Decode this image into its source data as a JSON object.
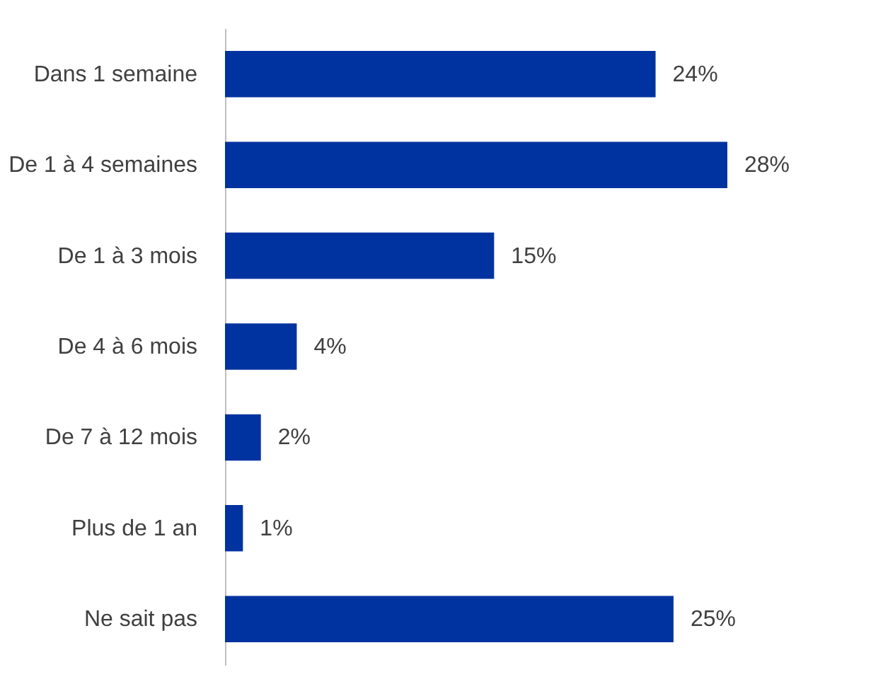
{
  "chart_data": {
    "type": "bar",
    "orientation": "horizontal",
    "categories": [
      "Dans 1 semaine",
      "De 1 à 4 semaines",
      "De 1 à 3 mois",
      "De 4 à 6 mois",
      "De 7 à 12 mois",
      "Plus de 1 an",
      "Ne sait pas"
    ],
    "values": [
      24,
      28,
      15,
      4,
      2,
      1,
      25
    ],
    "value_labels": [
      "24%",
      "28%",
      "15%",
      "4%",
      "2%",
      "1%",
      "25%"
    ],
    "color": "#0033a0",
    "grid": false
  }
}
